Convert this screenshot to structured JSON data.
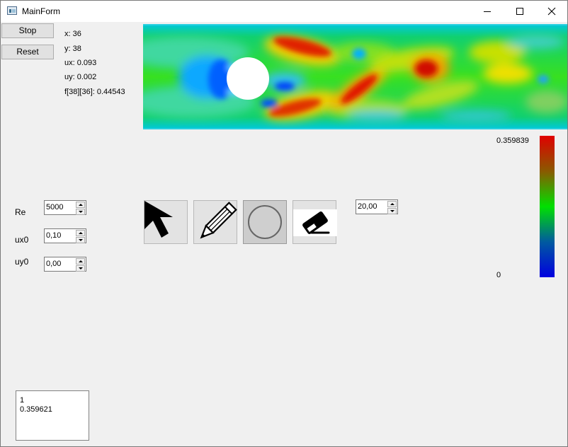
{
  "window": {
    "title": "MainForm"
  },
  "titlebar": {
    "icon": "app-form-icon",
    "minimize_icon": "minimize-icon",
    "maximize_icon": "maximize-icon",
    "close_icon": "close-icon"
  },
  "controls": {
    "stop_label": "Stop",
    "reset_label": "Reset"
  },
  "info": {
    "x": "x: 36",
    "y": "y: 38",
    "ux": "ux: 0.093",
    "uy": "uy: 0.002",
    "f": "f[38][36]: 0.44543"
  },
  "colorbar": {
    "max_label": "0.359839",
    "min_label": "0",
    "colors": [
      "#e00000",
      "#00e000",
      "#0000e0"
    ]
  },
  "params": [
    {
      "label": "Re",
      "value": "5000"
    },
    {
      "label": "ux0",
      "value": "0,10"
    },
    {
      "label": "uy0",
      "value": "0,00"
    }
  ],
  "tools": [
    {
      "icon": "cursor-arrow-icon"
    },
    {
      "icon": "pencil-icon"
    },
    {
      "icon": "circle-icon",
      "selected": true
    },
    {
      "icon": "eraser-icon"
    }
  ],
  "brush_size": {
    "value": "20,00"
  },
  "output": {
    "lines": [
      "1",
      "0.359621"
    ]
  }
}
